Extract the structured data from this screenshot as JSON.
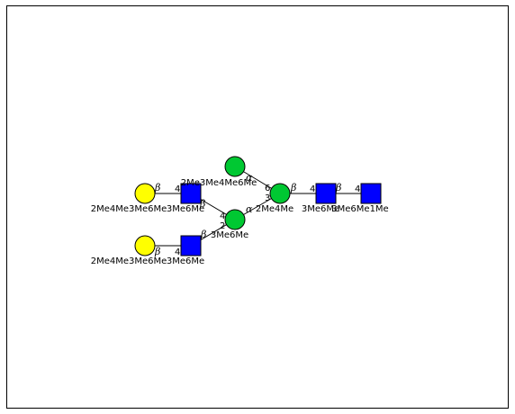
{
  "diagram": {
    "colors": {
      "glcnac": "#0000ff",
      "man": "#00c832",
      "gal": "#ffff00",
      "outline": "#000000",
      "edge": "#000000"
    },
    "residues": [
      {
        "id": "gal-top",
        "shape": "circle",
        "color": "#ffff00",
        "label": "2Me4Me3Me6Me"
      },
      {
        "id": "glcnac-top",
        "shape": "square",
        "color": "#0000ff",
        "label": "3Me6Me"
      },
      {
        "id": "gal-bottom",
        "shape": "circle",
        "color": "#ffff00",
        "label": "2Me4Me3Me6Me"
      },
      {
        "id": "glcnac-bottom",
        "shape": "square",
        "color": "#0000ff",
        "label": "3Me6Me"
      },
      {
        "id": "man-top",
        "shape": "circle",
        "color": "#00c832",
        "label": "2Me3Me4Me6Me"
      },
      {
        "id": "man-middle",
        "shape": "circle",
        "color": "#00c832",
        "label": "3Me6Me"
      },
      {
        "id": "man-core",
        "shape": "circle",
        "color": "#00c832",
        "label": "2Me4Me"
      },
      {
        "id": "glcnac-core1",
        "shape": "square",
        "color": "#0000ff",
        "label": "3Me6Me"
      },
      {
        "id": "glcnac-core2",
        "shape": "square",
        "color": "#0000ff",
        "label": "3Me6Me1Me"
      }
    ],
    "linkages": [
      {
        "id": "gal-top-to-glcnac-top",
        "anomer": "β",
        "position": "4"
      },
      {
        "id": "gal-bottom-to-glcnac-bottom",
        "anomer": "β",
        "position": "4"
      },
      {
        "id": "glcnac-top-to-man-middle",
        "anomer": "β",
        "position": "4"
      },
      {
        "id": "glcnac-bottom-to-man-middle",
        "anomer": "β",
        "position": "2"
      },
      {
        "id": "man-top-to-man-core",
        "anomer": "α",
        "position": "6"
      },
      {
        "id": "man-middle-to-man-core",
        "anomer": "α",
        "position": "3"
      },
      {
        "id": "man-core-to-glcnac-core1",
        "anomer": "β",
        "position": "4"
      },
      {
        "id": "glcnac-core1-to-glcnac-core2",
        "anomer": "β",
        "position": "4"
      }
    ]
  }
}
